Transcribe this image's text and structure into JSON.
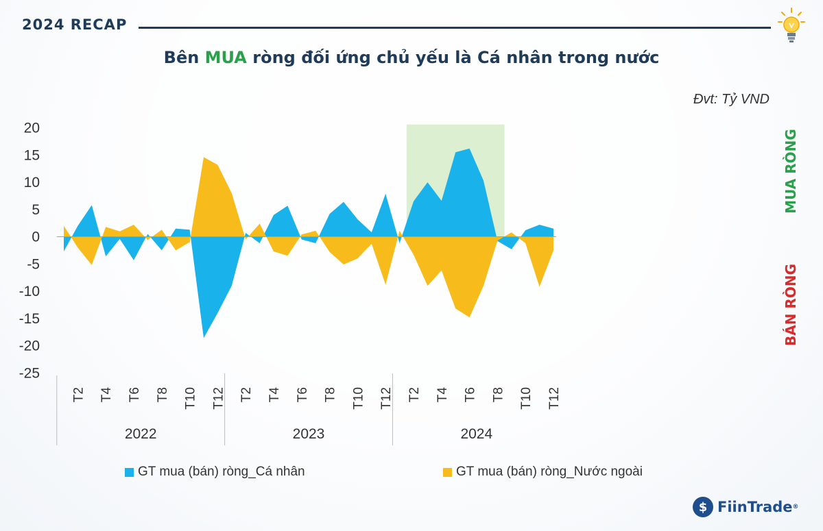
{
  "header": {
    "badge": "2024 RECAP",
    "title_pre": "Bên ",
    "title_highlight": "MUA",
    "title_post": " ròng đối ứng chủ yếu là Cá nhân trong nước",
    "unit": "Đvt: Tỷ VND",
    "icon": "lightbulb-icon"
  },
  "side_labels": {
    "buy": "MUA RÒNG",
    "sell": "BÁN RÒNG"
  },
  "brand": {
    "name": "FiinTrade",
    "mark": "®",
    "icon": "fiintrade-logo-icon"
  },
  "colors": {
    "individual": "#1ab2ea",
    "foreign": "#f7bb1b",
    "buy": "#2aa04a",
    "sell": "#d92b2b",
    "navy": "#1f3b5a",
    "highlight": "#d6edc9"
  },
  "chart_data": {
    "type": "area",
    "title": "",
    "ylim": [
      -25,
      20
    ],
    "yticks": [
      "20",
      "15",
      "10",
      "5",
      "0",
      "-5",
      "-10",
      "-15",
      "-20",
      "-25"
    ],
    "x_labels": [
      "T2",
      "T4",
      "T6",
      "T8",
      "T10",
      "T12",
      "T2",
      "T4",
      "T6",
      "T8",
      "T10",
      "T12",
      "T2",
      "T4",
      "T6",
      "T8",
      "T10",
      "T12"
    ],
    "years": [
      "2022",
      "2023",
      "2024"
    ],
    "highlight_months": {
      "from": 2,
      "to": 8,
      "year": "2024"
    },
    "series": [
      {
        "name": "GT mua (bán) ròng_Cá nhân",
        "values": [
          -2.7,
          2,
          5.8,
          -3.6,
          -0.4,
          -4.3,
          0.5,
          -2.5,
          1.5,
          1.3,
          -18.6,
          -14,
          -9,
          0.7,
          -1.2,
          4,
          5.7,
          -0.5,
          -1.2,
          4.2,
          6.4,
          3.2,
          0.8,
          7.9,
          -1.2,
          6.5,
          10,
          6.6,
          15.5,
          16.2,
          10.3,
          -0.8,
          -2.3,
          1.2,
          2.2,
          1.5
        ]
      },
      {
        "name": "GT mua (bán) ròng_Nước ngoài",
        "values": [
          2,
          -2,
          -5.2,
          1.8,
          1,
          2.2,
          -0.6,
          1.3,
          -2.5,
          -1,
          14.6,
          13.2,
          8,
          -0.5,
          2.4,
          -2.7,
          -3.5,
          0.4,
          1.1,
          -2.8,
          -5.1,
          -4,
          -1.3,
          -8.8,
          1.1,
          -3.3,
          -9,
          -6.2,
          -13.2,
          -14.8,
          -9,
          -0.7,
          0.8,
          -1.2,
          -9.2,
          -2.5
        ]
      }
    ]
  }
}
